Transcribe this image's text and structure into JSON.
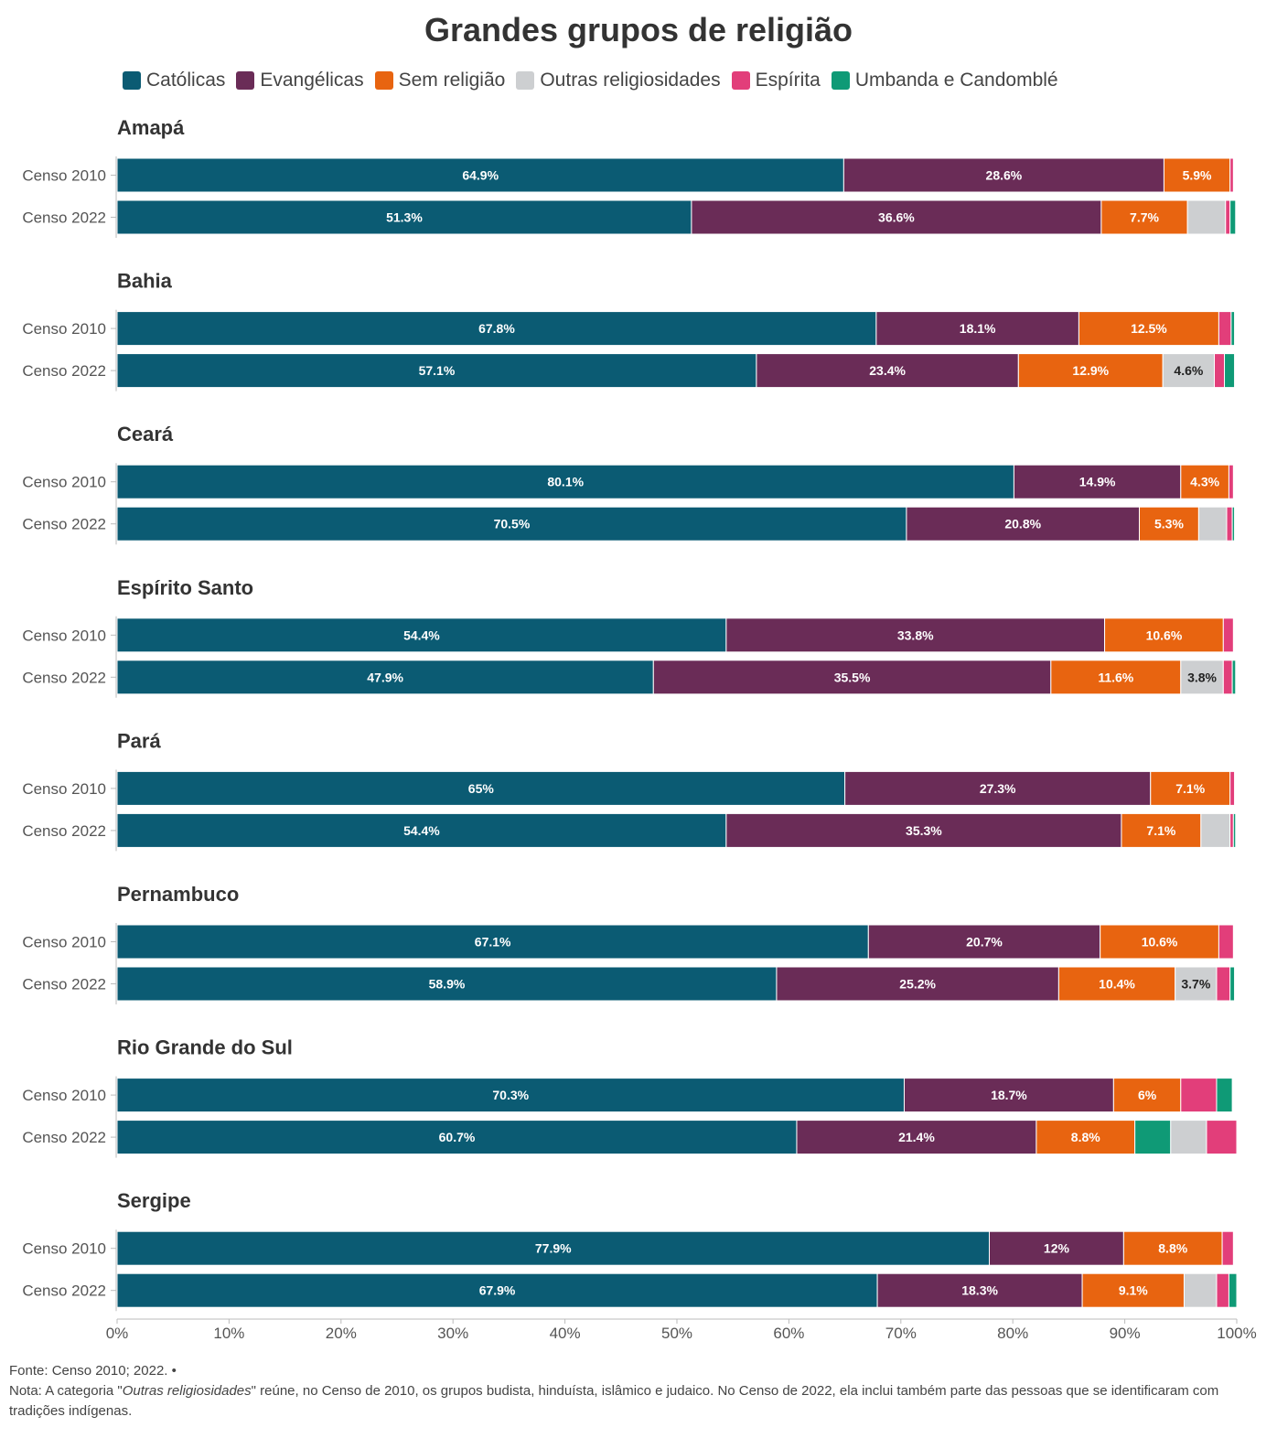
{
  "chart_data": {
    "type": "bar",
    "orientation": "horizontal",
    "stacked": true,
    "normalized": true,
    "title": "Grandes grupos de religião",
    "series": [
      {
        "name": "Católicas",
        "color": "#0b5b73",
        "label_color": "#ffffff"
      },
      {
        "name": "Evangélicas",
        "color": "#6a2c57",
        "label_color": "#ffffff"
      },
      {
        "name": "Sem religião",
        "color": "#e86410",
        "label_color": "#ffffff"
      },
      {
        "name": "Outras religiosidades",
        "color": "#cdcfd1",
        "label_color": "#222222"
      },
      {
        "name": "Espírita",
        "color": "#e23e7a",
        "label_color": "#ffffff"
      },
      {
        "name": "Umbanda e Candomblé",
        "color": "#0f9a76",
        "label_color": "#ffffff"
      }
    ],
    "x_ticks": [
      "0%",
      "10%",
      "20%",
      "30%",
      "40%",
      "50%",
      "60%",
      "70%",
      "80%",
      "90%",
      "100%"
    ],
    "xlim": [
      0,
      100
    ],
    "legend_position": "top",
    "panels": [
      {
        "name": "Amapá",
        "rows": [
          {
            "label": "Censo 2010",
            "segments": [
              {
                "series": "Católicas",
                "value": 64.9,
                "label": "64.9%"
              },
              {
                "series": "Evangélicas",
                "value": 28.6,
                "label": "28.6%"
              },
              {
                "series": "Sem religião",
                "value": 5.9,
                "label": "5.9%"
              },
              {
                "series": "Espírita",
                "value": 0.3,
                "label": ""
              }
            ]
          },
          {
            "label": "Censo 2022",
            "segments": [
              {
                "series": "Católicas",
                "value": 51.3,
                "label": "51.3%"
              },
              {
                "series": "Evangélicas",
                "value": 36.6,
                "label": "36.6%"
              },
              {
                "series": "Sem religião",
                "value": 7.7,
                "label": "7.7%"
              },
              {
                "series": "Outras religiosidades",
                "value": 3.4,
                "label": ""
              },
              {
                "series": "Espírita",
                "value": 0.4,
                "label": ""
              },
              {
                "series": "Umbanda e Candomblé",
                "value": 0.5,
                "label": ""
              }
            ]
          }
        ]
      },
      {
        "name": "Bahia",
        "rows": [
          {
            "label": "Censo 2010",
            "segments": [
              {
                "series": "Católicas",
                "value": 67.8,
                "label": "67.8%"
              },
              {
                "series": "Evangélicas",
                "value": 18.1,
                "label": "18.1%"
              },
              {
                "series": "Sem religião",
                "value": 12.5,
                "label": "12.5%"
              },
              {
                "series": "Espírita",
                "value": 1.1,
                "label": ""
              },
              {
                "series": "Umbanda e Candomblé",
                "value": 0.3,
                "label": ""
              }
            ]
          },
          {
            "label": "Censo 2022",
            "segments": [
              {
                "series": "Católicas",
                "value": 57.1,
                "label": "57.1%"
              },
              {
                "series": "Evangélicas",
                "value": 23.4,
                "label": "23.4%"
              },
              {
                "series": "Sem religião",
                "value": 12.9,
                "label": "12.9%"
              },
              {
                "series": "Outras religiosidades",
                "value": 4.6,
                "label": "4.6%"
              },
              {
                "series": "Espírita",
                "value": 0.9,
                "label": ""
              },
              {
                "series": "Umbanda e Candomblé",
                "value": 0.9,
                "label": ""
              }
            ]
          }
        ]
      },
      {
        "name": "Ceará",
        "rows": [
          {
            "label": "Censo 2010",
            "segments": [
              {
                "series": "Católicas",
                "value": 80.1,
                "label": "80.1%"
              },
              {
                "series": "Evangélicas",
                "value": 14.9,
                "label": "14.9%"
              },
              {
                "series": "Sem religião",
                "value": 4.3,
                "label": "4.3%"
              },
              {
                "series": "Espírita",
                "value": 0.4,
                "label": ""
              }
            ]
          },
          {
            "label": "Censo 2022",
            "segments": [
              {
                "series": "Católicas",
                "value": 70.5,
                "label": "70.5%"
              },
              {
                "series": "Evangélicas",
                "value": 20.8,
                "label": "20.8%"
              },
              {
                "series": "Sem religião",
                "value": 5.3,
                "label": "5.3%"
              },
              {
                "series": "Outras religiosidades",
                "value": 2.5,
                "label": ""
              },
              {
                "series": "Espírita",
                "value": 0.5,
                "label": ""
              },
              {
                "series": "Umbanda e Candomblé",
                "value": 0.2,
                "label": ""
              }
            ]
          }
        ]
      },
      {
        "name": "Espírito Santo",
        "rows": [
          {
            "label": "Censo 2010",
            "segments": [
              {
                "series": "Católicas",
                "value": 54.4,
                "label": "54.4%"
              },
              {
                "series": "Evangélicas",
                "value": 33.8,
                "label": "33.8%"
              },
              {
                "series": "Sem religião",
                "value": 10.6,
                "label": "10.6%"
              },
              {
                "series": "Espírita",
                "value": 0.9,
                "label": ""
              }
            ]
          },
          {
            "label": "Censo 2022",
            "segments": [
              {
                "series": "Católicas",
                "value": 47.9,
                "label": "47.9%"
              },
              {
                "series": "Evangélicas",
                "value": 35.5,
                "label": "35.5%"
              },
              {
                "series": "Sem religião",
                "value": 11.6,
                "label": "11.6%"
              },
              {
                "series": "Outras religiosidades",
                "value": 3.8,
                "label": "3.8%"
              },
              {
                "series": "Espírita",
                "value": 0.8,
                "label": ""
              },
              {
                "series": "Umbanda e Candomblé",
                "value": 0.3,
                "label": ""
              }
            ]
          }
        ]
      },
      {
        "name": "Pará",
        "rows": [
          {
            "label": "Censo 2010",
            "segments": [
              {
                "series": "Católicas",
                "value": 65,
                "label": "65%"
              },
              {
                "series": "Evangélicas",
                "value": 27.3,
                "label": "27.3%"
              },
              {
                "series": "Sem religião",
                "value": 7.1,
                "label": "7.1%"
              },
              {
                "series": "Espírita",
                "value": 0.4,
                "label": ""
              }
            ]
          },
          {
            "label": "Censo 2022",
            "segments": [
              {
                "series": "Católicas",
                "value": 54.4,
                "label": "54.4%"
              },
              {
                "series": "Evangélicas",
                "value": 35.3,
                "label": "35.3%"
              },
              {
                "series": "Sem religião",
                "value": 7.1,
                "label": "7.1%"
              },
              {
                "series": "Outras religiosidades",
                "value": 2.6,
                "label": ""
              },
              {
                "series": "Espírita",
                "value": 0.3,
                "label": ""
              },
              {
                "series": "Umbanda e Candomblé",
                "value": 0.2,
                "label": ""
              }
            ]
          }
        ]
      },
      {
        "name": "Pernambuco",
        "rows": [
          {
            "label": "Censo 2010",
            "segments": [
              {
                "series": "Católicas",
                "value": 67.1,
                "label": "67.1%"
              },
              {
                "series": "Evangélicas",
                "value": 20.7,
                "label": "20.7%"
              },
              {
                "series": "Sem religião",
                "value": 10.6,
                "label": "10.6%"
              },
              {
                "series": "Espírita",
                "value": 1.3,
                "label": ""
              }
            ]
          },
          {
            "label": "Censo 2022",
            "segments": [
              {
                "series": "Católicas",
                "value": 58.9,
                "label": "58.9%"
              },
              {
                "series": "Evangélicas",
                "value": 25.2,
                "label": "25.2%"
              },
              {
                "series": "Sem religião",
                "value": 10.4,
                "label": "10.4%"
              },
              {
                "series": "Outras religiosidades",
                "value": 3.7,
                "label": "3.7%"
              },
              {
                "series": "Espírita",
                "value": 1.2,
                "label": ""
              },
              {
                "series": "Umbanda e Candomblé",
                "value": 0.4,
                "label": ""
              }
            ]
          }
        ]
      },
      {
        "name": "Rio Grande do Sul",
        "rows": [
          {
            "label": "Censo 2010",
            "segments": [
              {
                "series": "Católicas",
                "value": 70.3,
                "label": "70.3%"
              },
              {
                "series": "Evangélicas",
                "value": 18.7,
                "label": "18.7%"
              },
              {
                "series": "Sem religião",
                "value": 6,
                "label": "6%"
              },
              {
                "series": "Espírita",
                "value": 3.2,
                "label": ""
              },
              {
                "series": "Umbanda e Candomblé",
                "value": 1.4,
                "label": ""
              }
            ]
          },
          {
            "label": "Censo 2022",
            "segments": [
              {
                "series": "Católicas",
                "value": 60.7,
                "label": "60.7%"
              },
              {
                "series": "Evangélicas",
                "value": 21.4,
                "label": "21.4%"
              },
              {
                "series": "Sem religião",
                "value": 8.8,
                "label": "8.8%"
              },
              {
                "series": "Umbanda e Candomblé",
                "value": 3.2,
                "label": ""
              },
              {
                "series": "Outras religiosidades",
                "value": 3.2,
                "label": ""
              },
              {
                "series": "Espírita",
                "value": 2.7,
                "label": ""
              }
            ]
          }
        ]
      },
      {
        "name": "Sergipe",
        "rows": [
          {
            "label": "Censo 2010",
            "segments": [
              {
                "series": "Católicas",
                "value": 77.9,
                "label": "77.9%"
              },
              {
                "series": "Evangélicas",
                "value": 12,
                "label": "12%"
              },
              {
                "series": "Sem religião",
                "value": 8.8,
                "label": "8.8%"
              },
              {
                "series": "Espírita",
                "value": 1.0,
                "label": ""
              }
            ]
          },
          {
            "label": "Censo 2022",
            "segments": [
              {
                "series": "Católicas",
                "value": 67.9,
                "label": "67.9%"
              },
              {
                "series": "Evangélicas",
                "value": 18.3,
                "label": "18.3%"
              },
              {
                "series": "Sem religião",
                "value": 9.1,
                "label": "9.1%"
              },
              {
                "series": "Outras religiosidades",
                "value": 2.9,
                "label": ""
              },
              {
                "series": "Espírita",
                "value": 1.1,
                "label": ""
              },
              {
                "series": "Umbanda e Candomblé",
                "value": 0.7,
                "label": ""
              }
            ]
          }
        ]
      }
    ]
  },
  "footer": {
    "source": "Fonte: Censo 2010; 2022. •",
    "note_prefix": "Nota: A categoria \"",
    "note_em": "Outras religiosidades",
    "note_suffix": "\" reúne, no Censo de 2010, os grupos budista, hinduísta, islâmico e judaico. No Censo de 2022, ela inclui também parte das pessoas que se identificaram com tradições indígenas."
  }
}
